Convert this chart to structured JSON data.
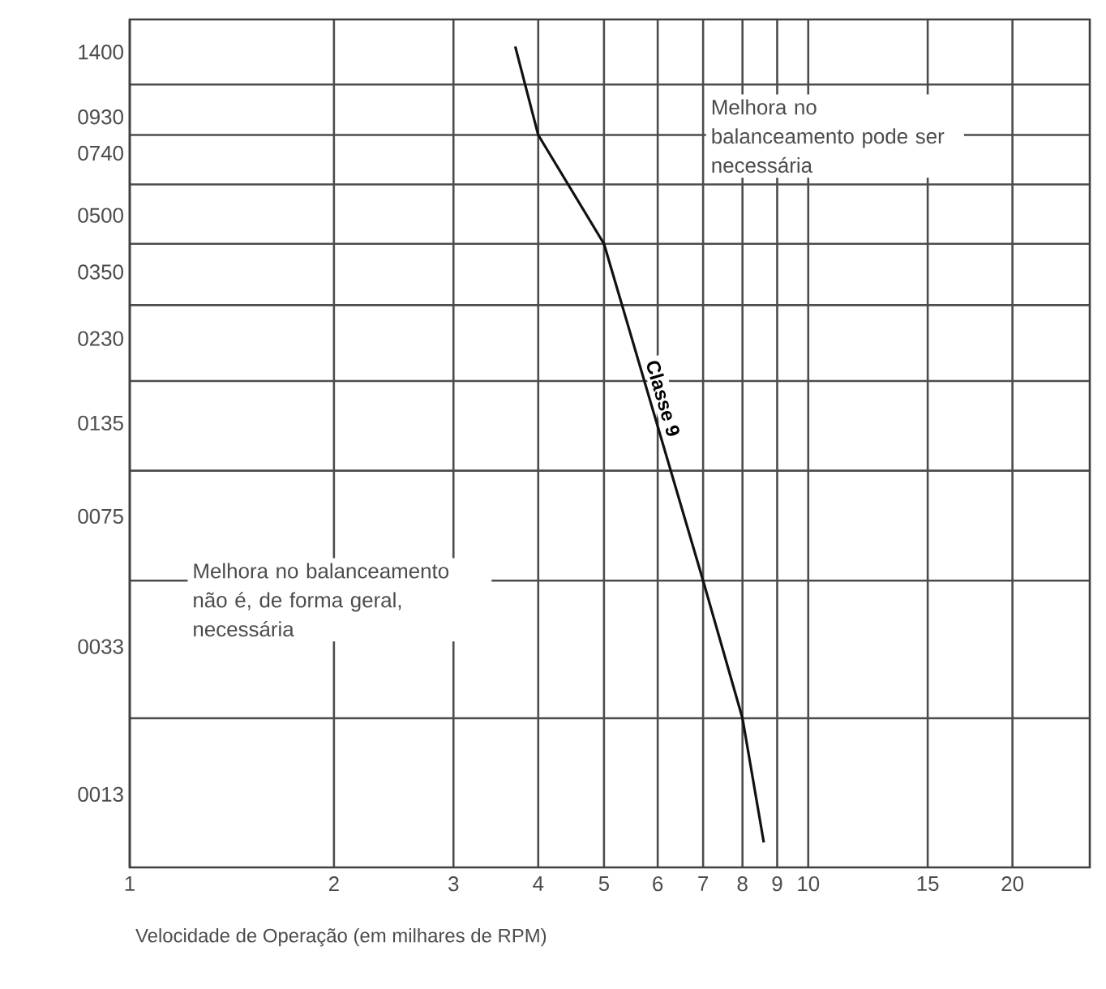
{
  "chart_data": {
    "type": "line",
    "xlabel": "Velocidade de Operação (em milhares de RPM)",
    "log": "xy",
    "xlim": [
      1,
      26
    ],
    "xticks": [
      1,
      2,
      3,
      4,
      5,
      6,
      7,
      8,
      9,
      10,
      15,
      20
    ],
    "ylim": [
      8.2,
      1720
    ],
    "yticks": [
      {
        "value": 13,
        "label": "0013"
      },
      {
        "value": 33,
        "label": "0033"
      },
      {
        "value": 75,
        "label": "0075"
      },
      {
        "value": 135,
        "label": "0135"
      },
      {
        "value": 230,
        "label": "0230"
      },
      {
        "value": 350,
        "label": "0350"
      },
      {
        "value": 500,
        "label": "0500"
      },
      {
        "value": 740,
        "label": "0740"
      },
      {
        "value": 930,
        "label": "0930"
      },
      {
        "value": 1400,
        "label": "1400"
      },
      {
        "value": 21,
        "label": null
      },
      {
        "value": 50,
        "label": null
      },
      {
        "value": 100,
        "label": null
      },
      {
        "value": 176,
        "label": null
      },
      {
        "value": 284,
        "label": null
      },
      {
        "value": 418,
        "label": null
      },
      {
        "value": 608,
        "label": null
      },
      {
        "value": 830,
        "label": null
      },
      {
        "value": 1141,
        "label": null
      }
    ],
    "grid": true,
    "series": [
      {
        "name": "Classe 9",
        "color": "#111111",
        "x": [
          3.7,
          4,
          5,
          7,
          8,
          8.6
        ],
        "values": [
          1450,
          830,
          418,
          50,
          21,
          9.6
        ]
      }
    ],
    "annotations": [
      "Melhora no balanceamento pode ser necessária",
      "Melhora no balanceamento não é, de forma geral, necessária"
    ]
  }
}
